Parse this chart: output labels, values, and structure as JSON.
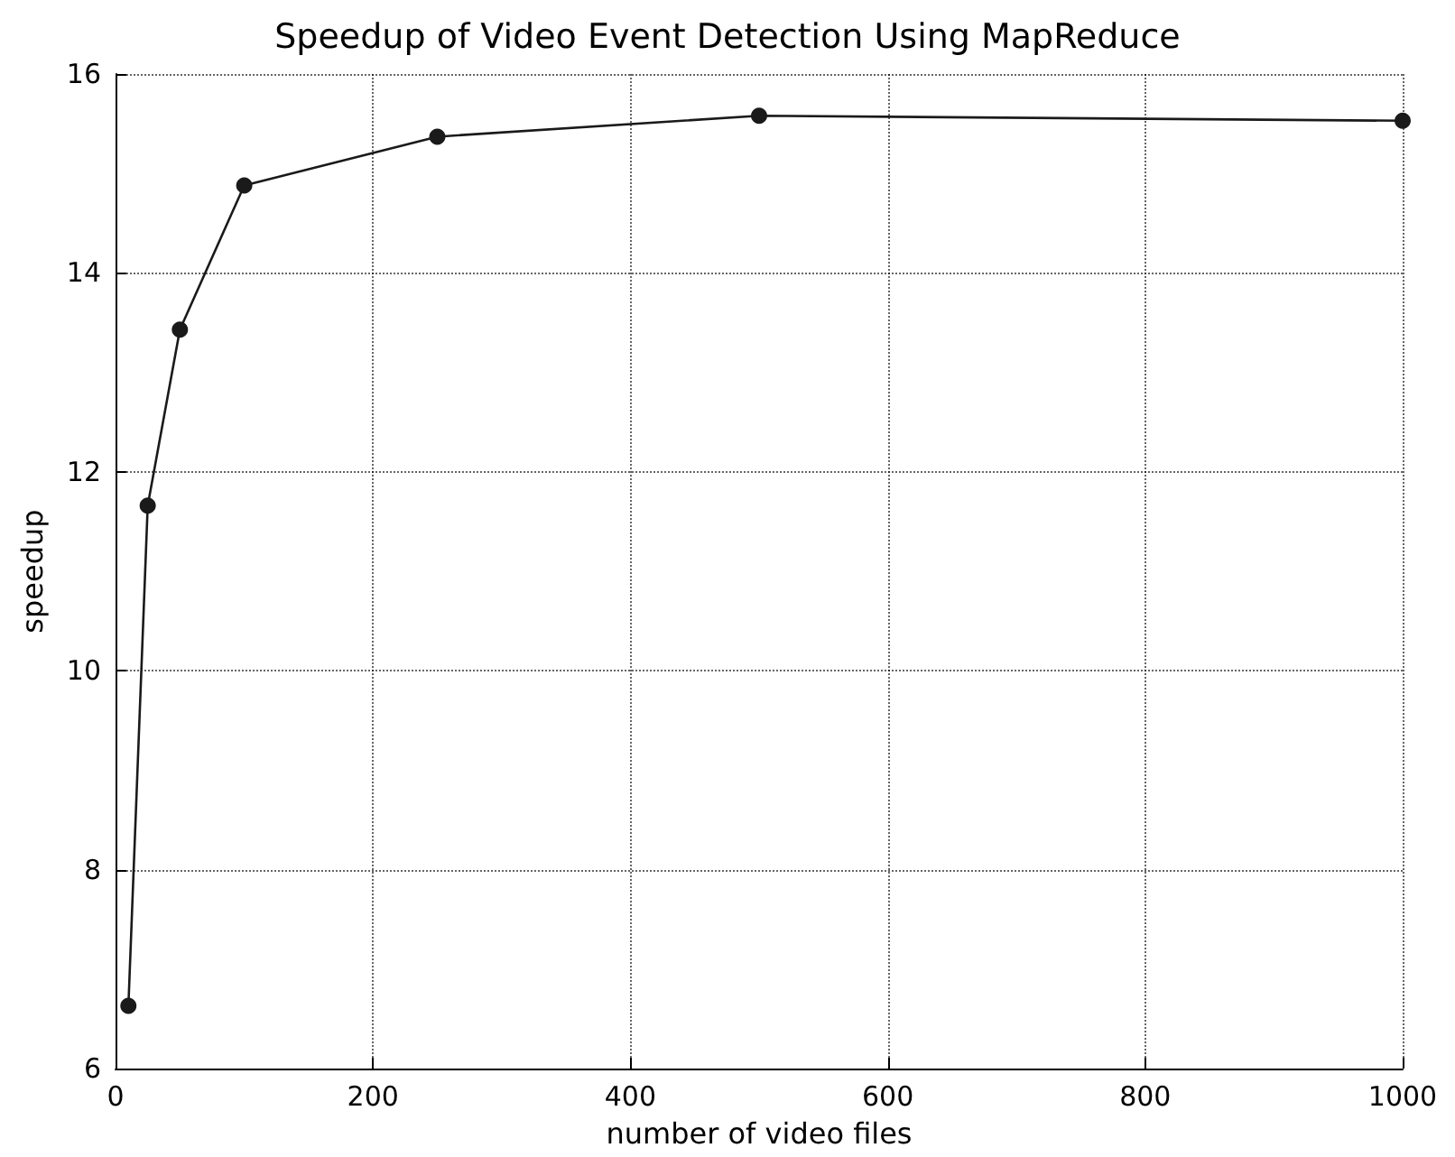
{
  "chart_data": {
    "type": "line",
    "title": "Speedup of Video Event Detection Using MapReduce",
    "xlabel": "number of video files",
    "ylabel": "speedup",
    "x": [
      10,
      25,
      50,
      100,
      250,
      500,
      1000
    ],
    "series": [
      {
        "color": "#1a1a1a",
        "values": [
          6.63,
          11.66,
          13.43,
          14.88,
          15.37,
          15.58,
          15.53
        ]
      }
    ],
    "xlim": [
      0,
      1000
    ],
    "xticks": [
      0,
      200,
      400,
      600,
      800,
      1000
    ],
    "ylim": [
      6,
      16
    ],
    "yticks": [
      6,
      8,
      10,
      12,
      14,
      16
    ],
    "grid": true,
    "marker": "circle",
    "line_style": "solid"
  }
}
